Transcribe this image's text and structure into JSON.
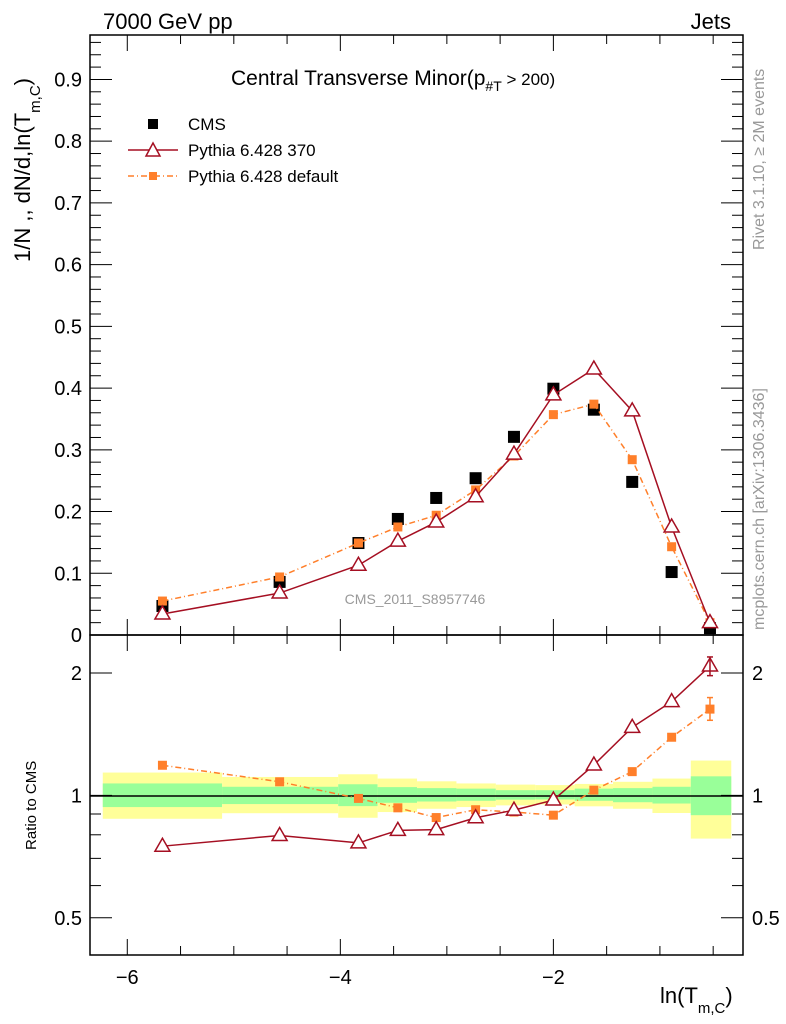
{
  "header": {
    "left": "7000 GeV pp",
    "right": "Jets"
  },
  "side_labels": {
    "rivet": "Rivet 3.1.10, ≥ 2M events",
    "mcplots": "mcplots.cern.ch [arXiv:1306.3436]"
  },
  "colors": {
    "cms": "#000000",
    "p370": "#a50f22",
    "pdef": "#ff7f2a",
    "band_inner": "#99ff99",
    "band_outer": "#ffff99"
  },
  "chart_data": [
    {
      "type": "line",
      "title": "Central Transverse Minor(p",
      "title_sub": "#T",
      "title_tail": " > 200)",
      "ylabel": "1/N ,, dN/d,ln(T",
      "ylabel_sub": "m,C",
      "ylabel_tail": ")",
      "watermark": "CMS_2011_S8957746",
      "xlim": [
        -6.35,
        -0.22
      ],
      "ylim": [
        0,
        0.972
      ],
      "yticks": [
        "0",
        "0.1",
        "0.2",
        "0.3",
        "0.4",
        "0.5",
        "0.6",
        "0.7",
        "0.8",
        "0.9"
      ],
      "legend": {
        "position": "top-left",
        "entries": [
          "CMS",
          "Pythia 6.428 370",
          "Pythia 6.428 default"
        ]
      },
      "x": [
        -5.67,
        -4.57,
        -3.83,
        -3.46,
        -3.1,
        -2.73,
        -2.37,
        -2.0,
        -1.62,
        -1.26,
        -0.89,
        -0.53
      ],
      "series": [
        {
          "name": "CMS",
          "marker": "square",
          "values": [
            0.047,
            0.086,
            0.149,
            0.188,
            0.222,
            0.254,
            0.321,
            0.399,
            0.365,
            0.248,
            0.102,
            0.011
          ]
        },
        {
          "name": "Pythia 6.428 370",
          "marker": "triangle",
          "values": [
            0.034,
            0.068,
            0.113,
            0.152,
            0.183,
            0.224,
            0.293,
            0.389,
            0.431,
            0.363,
            0.175,
            0.02
          ]
        },
        {
          "name": "Pythia 6.428 default",
          "marker": "small-square",
          "values": [
            0.055,
            0.094,
            0.149,
            0.175,
            0.194,
            0.235,
            0.29,
            0.357,
            0.374,
            0.284,
            0.143,
            0.02
          ]
        }
      ]
    },
    {
      "type": "line",
      "ylabel": "Ratio to CMS",
      "xlabel": "ln(T",
      "xlabel_sub": "m,C",
      "xlabel_tail": ")",
      "yscale": "log",
      "ylim": [
        0.405,
        2.48
      ],
      "xlim": [
        -6.35,
        -0.22
      ],
      "xticks": [
        "−6",
        "−4",
        "−2"
      ],
      "xtick_values": [
        -6,
        -4,
        -2
      ],
      "yticks": [
        "0.5",
        "1",
        "2"
      ],
      "ytick_values": [
        0.5,
        1,
        2
      ],
      "bin_edges": [
        -6.23,
        -5.11,
        -4.02,
        -3.65,
        -3.28,
        -2.91,
        -2.54,
        -2.17,
        -1.8,
        -1.44,
        -1.07,
        -0.71,
        -0.33
      ],
      "band_outer": [
        [
          0.876,
          1.138
        ],
        [
          0.904,
          1.11
        ],
        [
          0.881,
          1.127
        ],
        [
          0.91,
          1.1
        ],
        [
          0.927,
          1.083
        ],
        [
          0.936,
          1.07
        ],
        [
          0.945,
          1.063
        ],
        [
          0.95,
          1.06
        ],
        [
          0.94,
          1.067
        ],
        [
          0.927,
          1.08
        ],
        [
          0.905,
          1.1
        ],
        [
          0.783,
          1.218
        ]
      ],
      "band_inner": [
        [
          0.936,
          1.07
        ],
        [
          0.952,
          1.05
        ],
        [
          0.941,
          1.065
        ],
        [
          0.959,
          1.048
        ],
        [
          0.966,
          1.042
        ],
        [
          0.97,
          1.039
        ],
        [
          0.976,
          1.03
        ],
        [
          0.977,
          1.03
        ],
        [
          0.97,
          1.039
        ],
        [
          0.962,
          1.042
        ],
        [
          0.955,
          1.05
        ],
        [
          0.894,
          1.114
        ]
      ],
      "x": [
        -5.67,
        -4.57,
        -3.83,
        -3.46,
        -3.1,
        -2.73,
        -2.37,
        -2.0,
        -1.62,
        -1.26,
        -0.89,
        -0.53
      ],
      "series": [
        {
          "name": "Pythia 6.428 370",
          "values": [
            0.75,
            0.797,
            0.764,
            0.82,
            0.824,
            0.881,
            0.92,
            0.974,
            1.188,
            1.47,
            1.7,
            2.08
          ],
          "last_err": [
            1.97,
            2.19
          ]
        },
        {
          "name": "Pythia 6.428 default",
          "values": [
            1.186,
            1.08,
            0.983,
            0.932,
            0.882,
            0.922,
            0.91,
            0.894,
            1.03,
            1.144,
            1.39,
            1.63
          ],
          "last_err": [
            1.53,
            1.74
          ]
        }
      ]
    }
  ]
}
